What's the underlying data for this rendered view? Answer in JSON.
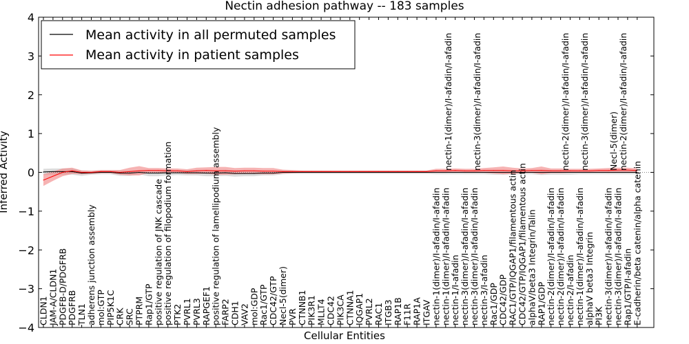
{
  "chart_data": {
    "type": "line",
    "title": "Nectin adhesion pathway -- 183 samples",
    "xlabel": "Cellular Entities",
    "ylabel": "Inferred Activity",
    "ylim": [
      -4,
      4
    ],
    "yticks": [
      -4,
      -3,
      -2,
      -1,
      0,
      1,
      2,
      3,
      4
    ],
    "ytick_labels": [
      "−4",
      "−3",
      "−2",
      "−1",
      "0",
      "1",
      "2",
      "3",
      "4"
    ],
    "legend_position": "top-left",
    "categories": [
      "CLDN1",
      "JAM-A/CLDN1",
      "PDGFB-D/PDGFRB",
      "PDGFRB",
      "TLN1",
      "adherens junction assembly",
      "mol:GTP",
      "PIP5K1C",
      "CRK",
      "SRC",
      "PTPRM",
      "Rap1/GTP",
      "positive regulation of JNK cascade",
      "positive regulation of filopodium formation",
      "PTK2",
      "PVRL1",
      "PVRL3",
      "RAPGEF1",
      "positive regulation of lamellipodium assembly",
      "FARP2",
      "CDH1",
      "VAV2",
      "mol:GDP",
      "Rac1/GTP",
      "CDC42/GTP",
      "Necl-5(dimer)",
      "PVR",
      "CTNNB1",
      "PIK3R1",
      "MLLT4",
      "CDC42",
      "PIK3CA",
      "CTNNA1",
      "IQGAP1",
      "PVRL2",
      "RAC1",
      "ITGB3",
      "RAP1B",
      "F11R",
      "RAP1A",
      "ITGAV",
      "nectin-1(dimer)/I-afadin/I-afadin",
      "nectin-1(dimer)/I-afadin/I-afadin",
      "nectin-1/I-afadin",
      "nectin-3(dimer)/I-afadin/I-afadin",
      "nectin-3(dimer)/I-afadin/I-afadin",
      "nectin-3/I-afadin",
      "Rac1/GDP",
      "CDC42/GDP",
      "RAC1/GTP/IQGAP1/filamentous actin",
      "CDC42/GTP/IQGAP1/filamentous actin",
      "alphaV/beta3 Integrin/Talin",
      "RAP1/GDP",
      "nectin-2(dimer)/I-afadin/I-afadin",
      "nectin-2(dimer)/I-afadin/I-afadin",
      "nectin-2/I-afadin",
      "nectin-1(dimer)/I-afadin/I-afadin",
      "alphaV beta3 Integrin",
      "PI3K",
      "nectin-3(dimer)/I-afadin/I-afadin",
      "nectin-3(dimer)/I-afadin/I-afadin",
      "Rap1/GTP/I-afadin",
      "E-cadherin/beta catenin/alpha catenin"
    ],
    "top_labels": [
      "nectin-1(dimer)/I-afadin/I-afadin",
      "nectin-3(dimer)/I-afadin/I-afadin",
      "nectin-2(dimer)/I-afadin/I-afadin",
      "nectin-3(dimer)/I-afadin/I-afadin",
      "Necl-5(dimer)",
      "nectin-2(dimer)/I-afadin/I-afadin"
    ],
    "series": [
      {
        "name": "Mean activity in all permuted samples",
        "color": "#000000",
        "band_color": "#bfbfbf",
        "values": [
          0.01,
          0.02,
          0.02,
          0.02,
          -0.02,
          -0.01,
          0.0,
          0.0,
          -0.02,
          -0.02,
          0.0,
          -0.02,
          -0.02,
          -0.01,
          -0.01,
          -0.01,
          -0.01,
          -0.02,
          -0.02,
          -0.01,
          -0.03,
          -0.03,
          -0.03,
          -0.02,
          -0.02,
          0.0,
          0.0,
          0.0,
          0.0,
          0.0,
          0.0,
          0.0,
          0.0,
          0.0,
          0.0,
          0.0,
          0.0,
          0.0,
          0.0,
          0.0,
          0.0,
          0.0,
          0.0,
          0.0,
          0.0,
          0.0,
          0.0,
          0.0,
          0.0,
          0.0,
          0.0,
          0.0,
          0.0,
          0.0,
          0.0,
          0.0,
          0.0,
          0.0,
          0.0,
          0.0,
          0.0,
          0.0,
          0.0
        ],
        "spread": [
          0.08,
          0.08,
          0.08,
          0.08,
          0.07,
          0.05,
          0.05,
          0.05,
          0.07,
          0.07,
          0.05,
          0.08,
          0.08,
          0.07,
          0.06,
          0.07,
          0.07,
          0.08,
          0.08,
          0.08,
          0.08,
          0.07,
          0.07,
          0.06,
          0.06,
          0.05,
          0.04,
          0.04,
          0.04,
          0.04,
          0.04,
          0.04,
          0.04,
          0.04,
          0.04,
          0.04,
          0.04,
          0.04,
          0.04,
          0.04,
          0.04,
          0.05,
          0.05,
          0.05,
          0.05,
          0.05,
          0.05,
          0.06,
          0.06,
          0.05,
          0.05,
          0.05,
          0.07,
          0.06,
          0.06,
          0.06,
          0.05,
          0.05,
          0.05,
          0.05,
          0.05,
          0.05,
          0.05
        ]
      },
      {
        "name": "Mean activity in patient samples",
        "color": "#ff0000",
        "band_color": "#f08080",
        "values": [
          -0.2,
          -0.1,
          0.0,
          0.04,
          0.0,
          0.0,
          0.02,
          0.02,
          0.0,
          0.02,
          0.04,
          0.05,
          0.05,
          0.04,
          0.04,
          0.02,
          0.04,
          0.05,
          0.04,
          0.04,
          0.03,
          0.04,
          0.04,
          0.03,
          0.03,
          0.02,
          0.02,
          0.02,
          0.02,
          0.02,
          0.02,
          0.02,
          0.02,
          0.02,
          0.02,
          0.02,
          0.02,
          0.02,
          0.02,
          0.02,
          0.02,
          0.04,
          0.04,
          0.05,
          0.04,
          0.04,
          0.05,
          0.05,
          0.05,
          0.04,
          0.04,
          0.05,
          0.05,
          0.04,
          0.04,
          0.04,
          0.04,
          0.04,
          0.05,
          0.05,
          0.06,
          0.06,
          0.05
        ],
        "spread": [
          0.15,
          0.12,
          0.1,
          0.08,
          0.05,
          0.04,
          0.04,
          0.04,
          0.06,
          0.1,
          0.12,
          0.06,
          0.06,
          0.06,
          0.06,
          0.06,
          0.08,
          0.08,
          0.1,
          0.1,
          0.08,
          0.08,
          0.08,
          0.08,
          0.08,
          0.05,
          0.04,
          0.03,
          0.03,
          0.03,
          0.03,
          0.03,
          0.03,
          0.03,
          0.03,
          0.03,
          0.03,
          0.03,
          0.03,
          0.03,
          0.03,
          0.05,
          0.05,
          0.05,
          0.05,
          0.05,
          0.06,
          0.08,
          0.1,
          0.08,
          0.06,
          0.06,
          0.1,
          0.06,
          0.06,
          0.05,
          0.05,
          0.05,
          0.05,
          0.06,
          0.06,
          0.06,
          0.05
        ]
      }
    ]
  }
}
